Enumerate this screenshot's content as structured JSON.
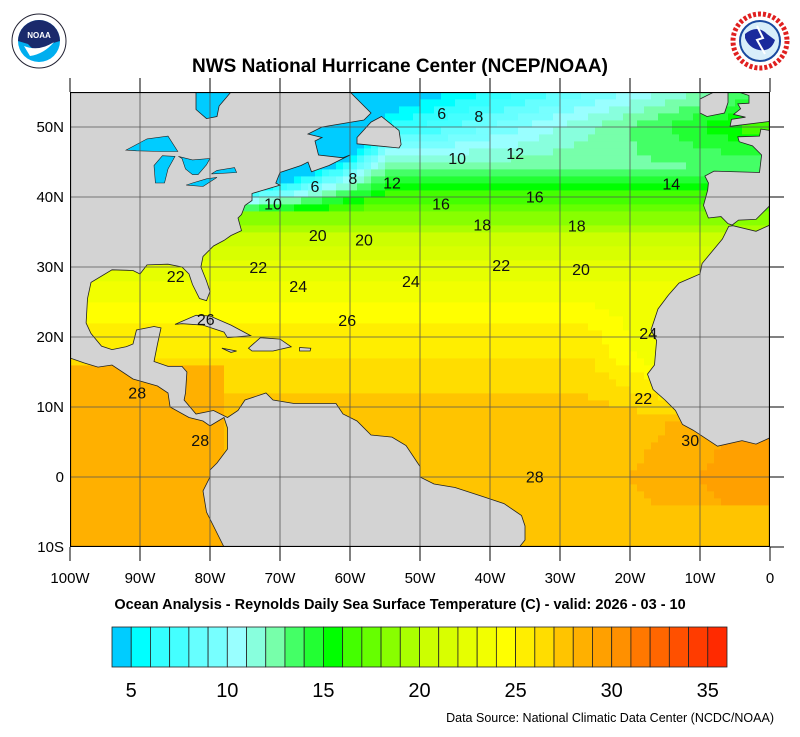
{
  "header": {
    "title": "NWS National Hurricane Center (NCEP/NOAA)",
    "logo_left_text": "NOAA",
    "logo_right_text": "NATIONAL WEATHER SERVICE"
  },
  "map": {
    "projection": "equirectangular",
    "lon_range": [
      -100,
      0
    ],
    "lat_range": [
      -10,
      55
    ],
    "grid": true,
    "land_color": "#d3d3d3",
    "lake_color": "#00ccff",
    "x_ticks": [
      {
        "lon": -100,
        "label": "100W"
      },
      {
        "lon": -90,
        "label": "90W"
      },
      {
        "lon": -80,
        "label": "80W"
      },
      {
        "lon": -70,
        "label": "70W"
      },
      {
        "lon": -60,
        "label": "60W"
      },
      {
        "lon": -50,
        "label": "50W"
      },
      {
        "lon": -40,
        "label": "40W"
      },
      {
        "lon": -30,
        "label": "30W"
      },
      {
        "lon": -20,
        "label": "20W"
      },
      {
        "lon": -10,
        "label": "10W"
      },
      {
        "lon": 0,
        "label": "0"
      }
    ],
    "y_ticks": [
      {
        "lat": 50,
        "label": "50N"
      },
      {
        "lat": 40,
        "label": "40N"
      },
      {
        "lat": 30,
        "label": "30N"
      },
      {
        "lat": 20,
        "label": "20N"
      },
      {
        "lat": 10,
        "label": "10N"
      },
      {
        "lat": 0,
        "label": "0"
      },
      {
        "lat": -10,
        "label": "10S"
      }
    ],
    "contour_labels": [
      {
        "value": "6",
        "lon": -46.9,
        "lat": 52.0
      },
      {
        "value": "8",
        "lon": -41.6,
        "lat": 51.6
      },
      {
        "value": "10",
        "lon": -44.7,
        "lat": 45.6
      },
      {
        "value": "12",
        "lon": -36.4,
        "lat": 46.3
      },
      {
        "value": "14",
        "lon": -14.1,
        "lat": 41.9
      },
      {
        "value": "16",
        "lon": -33.6,
        "lat": 40.1
      },
      {
        "value": "6",
        "lon": -65.0,
        "lat": 41.6
      },
      {
        "value": "8",
        "lon": -59.6,
        "lat": 42.7
      },
      {
        "value": "12",
        "lon": -54.0,
        "lat": 42.1
      },
      {
        "value": "10",
        "lon": -71.0,
        "lat": 39.1
      },
      {
        "value": "16",
        "lon": -47.0,
        "lat": 39.1
      },
      {
        "value": "18",
        "lon": -41.1,
        "lat": 36.1
      },
      {
        "value": "18",
        "lon": -27.6,
        "lat": 35.9
      },
      {
        "value": "20",
        "lon": -64.6,
        "lat": 34.6
      },
      {
        "value": "20",
        "lon": -58.0,
        "lat": 33.9
      },
      {
        "value": "22",
        "lon": -73.1,
        "lat": 30.0
      },
      {
        "value": "22",
        "lon": -38.4,
        "lat": 30.3
      },
      {
        "value": "20",
        "lon": -27.0,
        "lat": 29.7
      },
      {
        "value": "24",
        "lon": -67.4,
        "lat": 27.3
      },
      {
        "value": "24",
        "lon": -51.3,
        "lat": 28.0
      },
      {
        "value": "22",
        "lon": -84.9,
        "lat": 28.7
      },
      {
        "value": "26",
        "lon": -80.6,
        "lat": 22.6
      },
      {
        "value": "26",
        "lon": -60.4,
        "lat": 22.4
      },
      {
        "value": "28",
        "lon": -90.4,
        "lat": 12.1
      },
      {
        "value": "28",
        "lon": -81.4,
        "lat": 5.3
      },
      {
        "value": "22",
        "lon": -18.1,
        "lat": 11.3
      },
      {
        "value": "24",
        "lon": -17.4,
        "lat": 20.6
      },
      {
        "value": "30",
        "lon": -11.4,
        "lat": 5.3
      },
      {
        "value": "28",
        "lon": -33.6,
        "lat": 0.1
      }
    ]
  },
  "caption": "Ocean Analysis - Reynolds Daily Sea Surface Temperature (C) - valid: 2026 - 03 - 10",
  "colorbar": {
    "min": 4,
    "max": 36,
    "step": 1,
    "colors": [
      "#00ccff",
      "#00ffff",
      "#33ffff",
      "#44ffff",
      "#66ffff",
      "#77ffff",
      "#99ffff",
      "#88ffdd",
      "#77ffaa",
      "#44ff66",
      "#22ff33",
      "#00ff00",
      "#44ff00",
      "#66ff00",
      "#88ff00",
      "#aaff00",
      "#ccff00",
      "#d8ff00",
      "#e6ff00",
      "#f2ff00",
      "#ffff00",
      "#ffee00",
      "#ffdd00",
      "#ffc400",
      "#ffb000",
      "#ffa000",
      "#ff9000",
      "#ff7800",
      "#ff6600",
      "#ff5000",
      "#ff3c00",
      "#ff2a00"
    ],
    "labels": [
      {
        "value": 5,
        "label": "5"
      },
      {
        "value": 10,
        "label": "10"
      },
      {
        "value": 15,
        "label": "15"
      },
      {
        "value": 20,
        "label": "20"
      },
      {
        "value": 25,
        "label": "25"
      },
      {
        "value": 30,
        "label": "30"
      },
      {
        "value": 35,
        "label": "35"
      }
    ]
  },
  "source": "Data Source: National Climatic Data Center (NCDC/NOAA)"
}
